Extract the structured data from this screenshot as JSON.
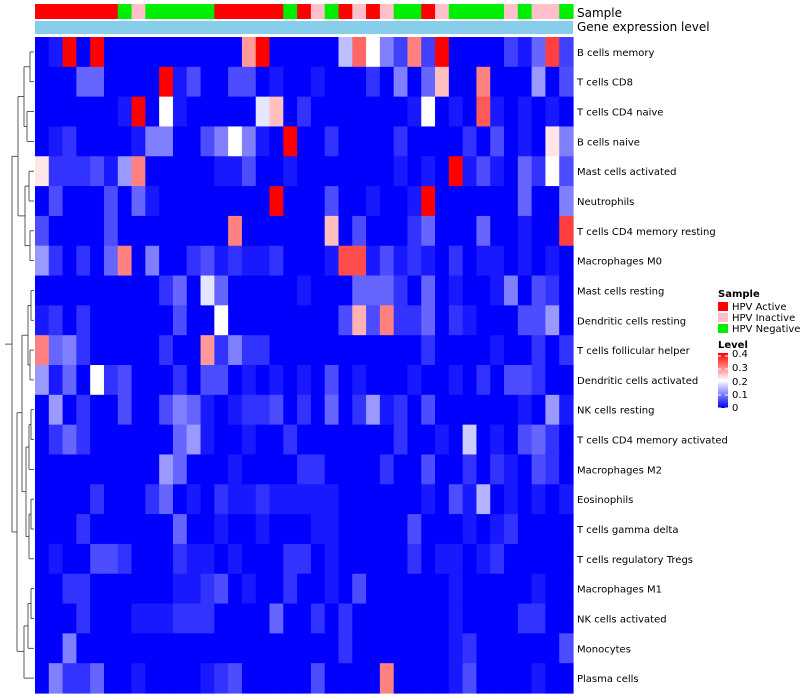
{
  "chart_data": {
    "type": "heatmap",
    "annotation_labels": [
      "Sample",
      "Gene expression level"
    ],
    "sample_groups": [
      "active",
      "active",
      "active",
      "active",
      "active",
      "active",
      "negative",
      "inactive",
      "negative",
      "negative",
      "negative",
      "negative",
      "negative",
      "active",
      "active",
      "active",
      "active",
      "active",
      "negative",
      "active",
      "inactive",
      "negative",
      "active",
      "inactive",
      "active",
      "inactive",
      "negative",
      "negative",
      "active",
      "inactive",
      "negative",
      "negative",
      "negative",
      "negative",
      "inactive",
      "negative",
      "inactive",
      "inactive",
      "negative"
    ],
    "group_colors": {
      "active": "#ff0000",
      "inactive": "#ffc0cb",
      "negative": "#00ee00"
    },
    "legend_sample": {
      "title": "Sample",
      "items": [
        {
          "key": "active",
          "label": "HPV Active"
        },
        {
          "key": "inactive",
          "label": "HPV Inactive"
        },
        {
          "key": "negative",
          "label": "HPV Negative"
        }
      ]
    },
    "legend_level": {
      "title": "Level",
      "ticks": [
        "0.4",
        "0.3",
        "0.2",
        "0.1",
        "0"
      ],
      "range": [
        0,
        0.4
      ]
    },
    "rows": [
      "B cells memory",
      "T cells CD8",
      "T cells CD4 naive",
      "B cells naive",
      "Mast cells activated",
      "Neutrophils",
      "T cells CD4 memory resting",
      "Macrophages M0",
      "Mast cells resting",
      "Dendritic cells resting",
      "T cells follicular helper",
      "Dendritic cells activated",
      "NK cells resting",
      "T cells CD4 memory activated",
      "Macrophages M2",
      "Eosinophils",
      "T cells gamma delta",
      "T cells regulatory  Tregs",
      "Macrophages M1",
      "NK cells activated",
      "Monocytes",
      "Plasma cells"
    ],
    "values": [
      [
        0,
        0.02,
        0.4,
        0,
        0.4,
        0,
        0,
        0,
        0,
        0,
        0,
        0,
        0,
        0,
        0,
        0.28,
        0.4,
        0,
        0,
        0,
        0,
        0,
        0.15,
        0.32,
        0.2,
        0.1,
        0.05,
        0.3,
        0.05,
        0.4,
        0,
        0,
        0,
        0,
        0.05,
        0.02,
        0.08,
        0.35,
        0.05
      ],
      [
        0,
        0,
        0,
        0.08,
        0.08,
        0,
        0,
        0,
        0,
        0.4,
        0.02,
        0.06,
        0,
        0,
        0.06,
        0.06,
        0,
        0.02,
        0,
        0,
        0.02,
        0,
        0,
        0,
        0.04,
        0,
        0.1,
        0,
        0.08,
        0.25,
        0,
        0,
        0.3,
        0,
        0,
        0,
        0.12,
        0,
        0.06
      ],
      [
        0,
        0,
        0,
        0,
        0,
        0,
        0.02,
        0.4,
        0,
        0.2,
        0.02,
        0,
        0,
        0,
        0,
        0,
        0.18,
        0.25,
        0,
        0.04,
        0,
        0,
        0,
        0,
        0,
        0,
        0,
        0.02,
        0.2,
        0,
        0.02,
        0,
        0.33,
        0.02,
        0,
        0.02,
        0,
        0.02,
        0
      ],
      [
        0,
        0.02,
        0.04,
        0,
        0,
        0,
        0,
        0.02,
        0.1,
        0.1,
        0,
        0,
        0.06,
        0.1,
        0.2,
        0.1,
        0.02,
        0,
        0.4,
        0,
        0,
        0.04,
        0,
        0,
        0,
        0,
        0.04,
        0,
        0,
        0,
        0,
        0.04,
        0,
        0.06,
        0,
        0.02,
        0,
        0.22,
        0.1
      ],
      [
        0.22,
        0.04,
        0.04,
        0.04,
        0.06,
        0.02,
        0.12,
        0.3,
        0,
        0,
        0,
        0,
        0,
        0.02,
        0.02,
        0.06,
        0,
        0,
        0.02,
        0,
        0,
        0,
        0,
        0,
        0,
        0,
        0.02,
        0,
        0.02,
        0,
        0.4,
        0.02,
        0.06,
        0.02,
        0,
        0.08,
        0.04,
        0.2,
        0.06
      ],
      [
        0,
        0.06,
        0,
        0,
        0,
        0.06,
        0,
        0.08,
        0.02,
        0,
        0,
        0,
        0,
        0,
        0,
        0,
        0,
        0.4,
        0,
        0,
        0,
        0.06,
        0,
        0,
        0.02,
        0,
        0,
        0.02,
        0.4,
        0,
        0,
        0,
        0,
        0,
        0,
        0.08,
        0,
        0,
        0.1
      ],
      [
        0.06,
        0,
        0,
        0,
        0,
        0.06,
        0,
        0,
        0,
        0,
        0,
        0,
        0,
        0,
        0.3,
        0,
        0,
        0,
        0,
        0,
        0,
        0.25,
        0,
        0.06,
        0,
        0,
        0,
        0.04,
        0.08,
        0,
        0,
        0,
        0.08,
        0,
        0,
        0.02,
        0,
        0,
        0.35
      ],
      [
        0.12,
        0.04,
        0,
        0.04,
        0,
        0.08,
        0.3,
        0,
        0.1,
        0,
        0,
        0.04,
        0.06,
        0.02,
        0.04,
        0.02,
        0.02,
        0.04,
        0,
        0,
        0,
        0.02,
        0.34,
        0.34,
        0.02,
        0.06,
        0.02,
        0.04,
        0.02,
        0,
        0.04,
        0,
        0.02,
        0.02,
        0,
        0.02,
        0,
        0.02,
        0
      ],
      [
        0,
        0,
        0,
        0,
        0,
        0,
        0,
        0,
        0,
        0.04,
        0.08,
        0,
        0.18,
        0.08,
        0,
        0,
        0,
        0,
        0,
        0.02,
        0,
        0,
        0,
        0.08,
        0.08,
        0.08,
        0.04,
        0,
        0.08,
        0,
        0.02,
        0,
        0,
        0.02,
        0.1,
        0,
        0.06,
        0.04,
        0
      ],
      [
        0.02,
        0.04,
        0,
        0.04,
        0,
        0,
        0,
        0,
        0,
        0,
        0.06,
        0,
        0,
        0.2,
        0,
        0,
        0,
        0,
        0,
        0,
        0,
        0,
        0.06,
        0.26,
        0.06,
        0.3,
        0.04,
        0.04,
        0.08,
        0,
        0.04,
        0.02,
        0,
        0,
        0,
        0.06,
        0.06,
        0.12,
        0
      ],
      [
        0.3,
        0.08,
        0.1,
        0.04,
        0,
        0,
        0,
        0,
        0,
        0.04,
        0,
        0,
        0.28,
        0.04,
        0.1,
        0.04,
        0.04,
        0,
        0,
        0,
        0,
        0,
        0,
        0,
        0,
        0,
        0,
        0,
        0.04,
        0,
        0,
        0,
        0,
        0.02,
        0,
        0,
        0.04,
        0,
        0.04
      ],
      [
        0.12,
        0.02,
        0.08,
        0,
        0.2,
        0.04,
        0.06,
        0,
        0,
        0,
        0.04,
        0,
        0.06,
        0.06,
        0,
        0.02,
        0,
        0.02,
        0,
        0.02,
        0,
        0.06,
        0,
        0.02,
        0,
        0,
        0,
        0.02,
        0,
        0,
        0.02,
        0,
        0.04,
        0,
        0.06,
        0.06,
        0.04,
        0,
        0
      ],
      [
        0,
        0.12,
        0,
        0.04,
        0,
        0,
        0.06,
        0,
        0,
        0.06,
        0.1,
        0.08,
        0.02,
        0,
        0.02,
        0.04,
        0.04,
        0.06,
        0,
        0.04,
        0,
        0.08,
        0,
        0.04,
        0.12,
        0.02,
        0.04,
        0,
        0.06,
        0,
        0,
        0,
        0,
        0,
        0,
        0.02,
        0,
        0.12,
        0.02
      ],
      [
        0,
        0.04,
        0.08,
        0.04,
        0,
        0,
        0,
        0,
        0,
        0,
        0.08,
        0.12,
        0.02,
        0,
        0,
        0.02,
        0,
        0,
        0.04,
        0,
        0,
        0,
        0,
        0,
        0,
        0,
        0.04,
        0,
        0,
        0.02,
        0,
        0.16,
        0,
        0.02,
        0,
        0.06,
        0.08,
        0.04,
        0
      ],
      [
        0,
        0,
        0,
        0,
        0,
        0,
        0,
        0,
        0,
        0.12,
        0.08,
        0,
        0,
        0,
        0.02,
        0,
        0,
        0,
        0,
        0.04,
        0.04,
        0,
        0,
        0,
        0,
        0.04,
        0,
        0,
        0.06,
        0,
        0,
        0.04,
        0,
        0.04,
        0.02,
        0,
        0.06,
        0.04,
        0
      ],
      [
        0,
        0,
        0,
        0,
        0.04,
        0,
        0,
        0,
        0.04,
        0.08,
        0,
        0.02,
        0,
        0.04,
        0.02,
        0.02,
        0.04,
        0.02,
        0.02,
        0.02,
        0.02,
        0.02,
        0,
        0,
        0,
        0,
        0,
        0,
        0.02,
        0,
        0.06,
        0.02,
        0.14,
        0,
        0.02,
        0,
        0.02,
        0,
        0.02
      ],
      [
        0,
        0,
        0,
        0.04,
        0,
        0,
        0,
        0,
        0,
        0,
        0.08,
        0,
        0,
        0.02,
        0,
        0,
        0.02,
        0,
        0,
        0,
        0.02,
        0.02,
        0,
        0,
        0,
        0,
        0,
        0.06,
        0,
        0,
        0,
        0.02,
        0,
        0.02,
        0.04,
        0,
        0,
        0,
        0
      ],
      [
        0,
        0.02,
        0,
        0,
        0.06,
        0.06,
        0.04,
        0,
        0,
        0,
        0.04,
        0.02,
        0.02,
        0,
        0.02,
        0,
        0,
        0,
        0.04,
        0.04,
        0,
        0.02,
        0,
        0,
        0,
        0,
        0,
        0.04,
        0,
        0.02,
        0.02,
        0,
        0.02,
        0.04,
        0,
        0,
        0,
        0,
        0
      ],
      [
        0,
        0,
        0.04,
        0.04,
        0,
        0,
        0,
        0,
        0,
        0,
        0.02,
        0.02,
        0.04,
        0.06,
        0,
        0.02,
        0,
        0,
        0.04,
        0,
        0,
        0.02,
        0,
        0.06,
        0,
        0,
        0,
        0,
        0,
        0,
        0.02,
        0,
        0,
        0,
        0,
        0,
        0.02,
        0,
        0
      ],
      [
        0,
        0,
        0,
        0.04,
        0,
        0,
        0,
        0.02,
        0.02,
        0.02,
        0.04,
        0.04,
        0.04,
        0,
        0,
        0,
        0,
        0.08,
        0,
        0,
        0.04,
        0,
        0.04,
        0,
        0,
        0,
        0,
        0,
        0,
        0,
        0.02,
        0,
        0,
        0,
        0,
        0.04,
        0.04,
        0,
        0
      ],
      [
        0,
        0,
        0.1,
        0,
        0,
        0,
        0,
        0,
        0,
        0,
        0,
        0,
        0,
        0,
        0,
        0,
        0,
        0,
        0,
        0,
        0,
        0,
        0.04,
        0,
        0,
        0,
        0,
        0,
        0,
        0,
        0.02,
        0.04,
        0,
        0,
        0,
        0,
        0,
        0,
        0.06
      ],
      [
        0,
        0.1,
        0.04,
        0.04,
        0.08,
        0,
        0,
        0.02,
        0,
        0,
        0,
        0,
        0.02,
        0.04,
        0.06,
        0,
        0,
        0,
        0,
        0,
        0.06,
        0,
        0,
        0,
        0,
        0.3,
        0,
        0,
        0,
        0,
        0.02,
        0.06,
        0,
        0,
        0,
        0,
        0.02,
        0,
        0
      ]
    ],
    "xlabel": "",
    "ylabel": ""
  }
}
